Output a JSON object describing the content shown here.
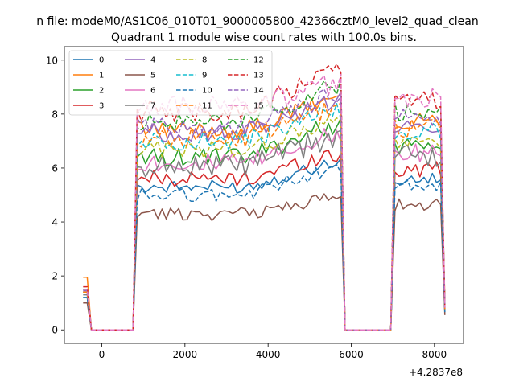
{
  "figure": {
    "suptitle": "n file: modeM0/AS1C06_010T01_9000005800_42366cztM0_level2_quad_clean"
  },
  "chart_data": {
    "type": "line",
    "title": "Quadrant 1 module wise count rates with 100.0s bins.",
    "xlabel": "",
    "ylabel": "",
    "x_offset_label": "+4.2837e8",
    "xlim": [
      -900,
      8700
    ],
    "ylim": [
      -0.5,
      10.5
    ],
    "xticks": [
      0,
      2000,
      4000,
      6000,
      8000
    ],
    "xtick_labels": [
      "0",
      "2000",
      "4000",
      "6000",
      "8000"
    ],
    "yticks": [
      0,
      2,
      4,
      6,
      8,
      10
    ],
    "ytick_labels": [
      "0",
      "2",
      "4",
      "6",
      "8",
      "10"
    ],
    "grid": false,
    "legend_position": "top-left",
    "legend_columns": 4,
    "segments": [
      {
        "edges": [
          -450,
          -350
        ],
        "bins": 1
      },
      {
        "edges": [
          -350,
          750
        ],
        "bins": 11
      },
      {
        "edges": [
          750,
          5750
        ],
        "bins": 50
      },
      {
        "edges": [
          5750,
          6950
        ],
        "bins": 12
      },
      {
        "edges": [
          6950,
          8250
        ],
        "bins": 13
      }
    ],
    "series": [
      {
        "name": "0",
        "color": "#1f77b4",
        "dashed": false,
        "start": 1.2,
        "active": 5.3,
        "late_rise": 0.9,
        "amp": 0.25
      },
      {
        "name": "1",
        "color": "#ff7f0e",
        "dashed": false,
        "start": 1.95,
        "active": 7.4,
        "late_rise": 1.2,
        "amp": 0.35
      },
      {
        "name": "2",
        "color": "#2ca02c",
        "dashed": false,
        "start": 1.5,
        "active": 6.4,
        "late_rise": 1.2,
        "amp": 0.35
      },
      {
        "name": "3",
        "color": "#d62728",
        "dashed": false,
        "start": 1.4,
        "active": 5.6,
        "late_rise": 0.9,
        "amp": 0.3
      },
      {
        "name": "4",
        "color": "#9467bd",
        "dashed": false,
        "start": 1.45,
        "active": 7.3,
        "late_rise": 1.2,
        "amp": 0.35
      },
      {
        "name": "5",
        "color": "#8c564b",
        "dashed": false,
        "start": 1.0,
        "active": 4.3,
        "late_rise": 0.6,
        "amp": 0.25
      },
      {
        "name": "6",
        "color": "#e377c2",
        "dashed": false,
        "start": 1.5,
        "active": 6.2,
        "late_rise": 1.0,
        "amp": 0.35
      },
      {
        "name": "7",
        "color": "#7f7f7f",
        "dashed": false,
        "start": 1.3,
        "active": 6.1,
        "late_rise": 1.0,
        "amp": 0.45
      },
      {
        "name": "8",
        "color": "#bcbd22",
        "dashed": true,
        "start": 1.4,
        "active": 6.7,
        "late_rise": 1.0,
        "amp": 0.35
      },
      {
        "name": "9",
        "color": "#17becf",
        "dashed": true,
        "start": 1.5,
        "active": 7.0,
        "late_rise": 1.1,
        "amp": 0.35
      },
      {
        "name": "10",
        "color": "#1f77b4",
        "dashed": true,
        "start": 1.2,
        "active": 5.0,
        "late_rise": 1.0,
        "amp": 0.25
      },
      {
        "name": "11",
        "color": "#ff7f0e",
        "dashed": true,
        "start": 1.4,
        "active": 7.1,
        "late_rise": 1.1,
        "amp": 0.35
      },
      {
        "name": "12",
        "color": "#2ca02c",
        "dashed": true,
        "start": 1.5,
        "active": 7.7,
        "late_rise": 1.3,
        "amp": 0.35
      },
      {
        "name": "13",
        "color": "#d62728",
        "dashed": true,
        "start": 1.6,
        "active": 8.1,
        "late_rise": 1.5,
        "amp": 0.4
      },
      {
        "name": "14",
        "color": "#9467bd",
        "dashed": true,
        "start": 1.5,
        "active": 7.5,
        "late_rise": 1.2,
        "amp": 0.35
      },
      {
        "name": "15",
        "color": "#e377c2",
        "dashed": true,
        "start": 1.5,
        "active": 8.3,
        "late_rise": 0.8,
        "amp": 0.4
      }
    ]
  }
}
